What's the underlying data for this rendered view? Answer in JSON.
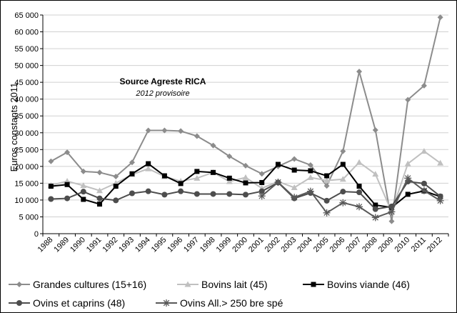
{
  "chart_data": {
    "type": "line",
    "ylabel": "Euros constants 2011",
    "xlabel": "",
    "ylim": [
      0,
      65000
    ],
    "ytick_step": 5000,
    "ytick_labels": [
      "0",
      "5 000",
      "10 000",
      "15 000",
      "20 000",
      "25 000",
      "30 000",
      "35 000",
      "40 000",
      "45 000",
      "50 000",
      "55 000",
      "60 000",
      "65 000"
    ],
    "grid": "horizontal",
    "legend_position": "bottom",
    "categories": [
      "1988",
      "1989",
      "1990",
      "1991",
      "1992",
      "1993",
      "1994",
      "1995",
      "1996",
      "1997",
      "1998",
      "1999",
      "2000",
      "2001",
      "2002",
      "2003",
      "2004",
      "2005",
      "2006",
      "2007",
      "2008",
      "2009",
      "2010",
      "2011",
      "2012"
    ],
    "annotation": {
      "title": "Source Agreste RICA",
      "subtitle": "2012 provisoire"
    },
    "series": [
      {
        "name": "Grandes cultures (15+16)",
        "color": "#8c8c8c",
        "marker": "diamond",
        "values": [
          21500,
          24200,
          18500,
          18200,
          17000,
          21200,
          30700,
          30700,
          30500,
          29000,
          26200,
          23000,
          20200,
          17800,
          20000,
          22200,
          20400,
          14200,
          24500,
          48200,
          30800,
          3700,
          39800,
          44000,
          64300
        ]
      },
      {
        "name": "Bovins lait (45)",
        "color": "#c0c0c0",
        "marker": "triangle",
        "values": [
          14400,
          15600,
          14300,
          12800,
          15000,
          17600,
          19300,
          17000,
          15600,
          16500,
          18200,
          15500,
          16700,
          13500,
          15500,
          13700,
          16700,
          15800,
          16200,
          21200,
          17700,
          6500,
          20800,
          24500,
          21000
        ]
      },
      {
        "name": "Bovins viande (46)",
        "color": "#000000",
        "marker": "square",
        "values": [
          14100,
          14600,
          10200,
          8800,
          14100,
          17800,
          20800,
          17200,
          14900,
          18500,
          18200,
          16500,
          15100,
          15200,
          20600,
          18900,
          18700,
          17200,
          20600,
          14100,
          8500,
          7800,
          11700,
          12700,
          11000
        ]
      },
      {
        "name": "Ovins et caprins (48)",
        "color": "#4d4d4d",
        "marker": "circle",
        "values": [
          10300,
          10500,
          12500,
          10500,
          9900,
          12000,
          12600,
          11600,
          12600,
          11800,
          11800,
          11800,
          11600,
          12600,
          15200,
          10500,
          12100,
          9800,
          12500,
          12300,
          7300,
          8100,
          15500,
          14900,
          11100
        ]
      },
      {
        "name": "Ovins All.> 250 bre spé",
        "color": "#595959",
        "marker": "star",
        "values": [
          null,
          null,
          null,
          null,
          null,
          null,
          null,
          null,
          null,
          null,
          null,
          null,
          null,
          11200,
          15300,
          10800,
          12600,
          6200,
          9200,
          8000,
          4800,
          6500,
          16500,
          12800,
          9800
        ]
      }
    ]
  }
}
